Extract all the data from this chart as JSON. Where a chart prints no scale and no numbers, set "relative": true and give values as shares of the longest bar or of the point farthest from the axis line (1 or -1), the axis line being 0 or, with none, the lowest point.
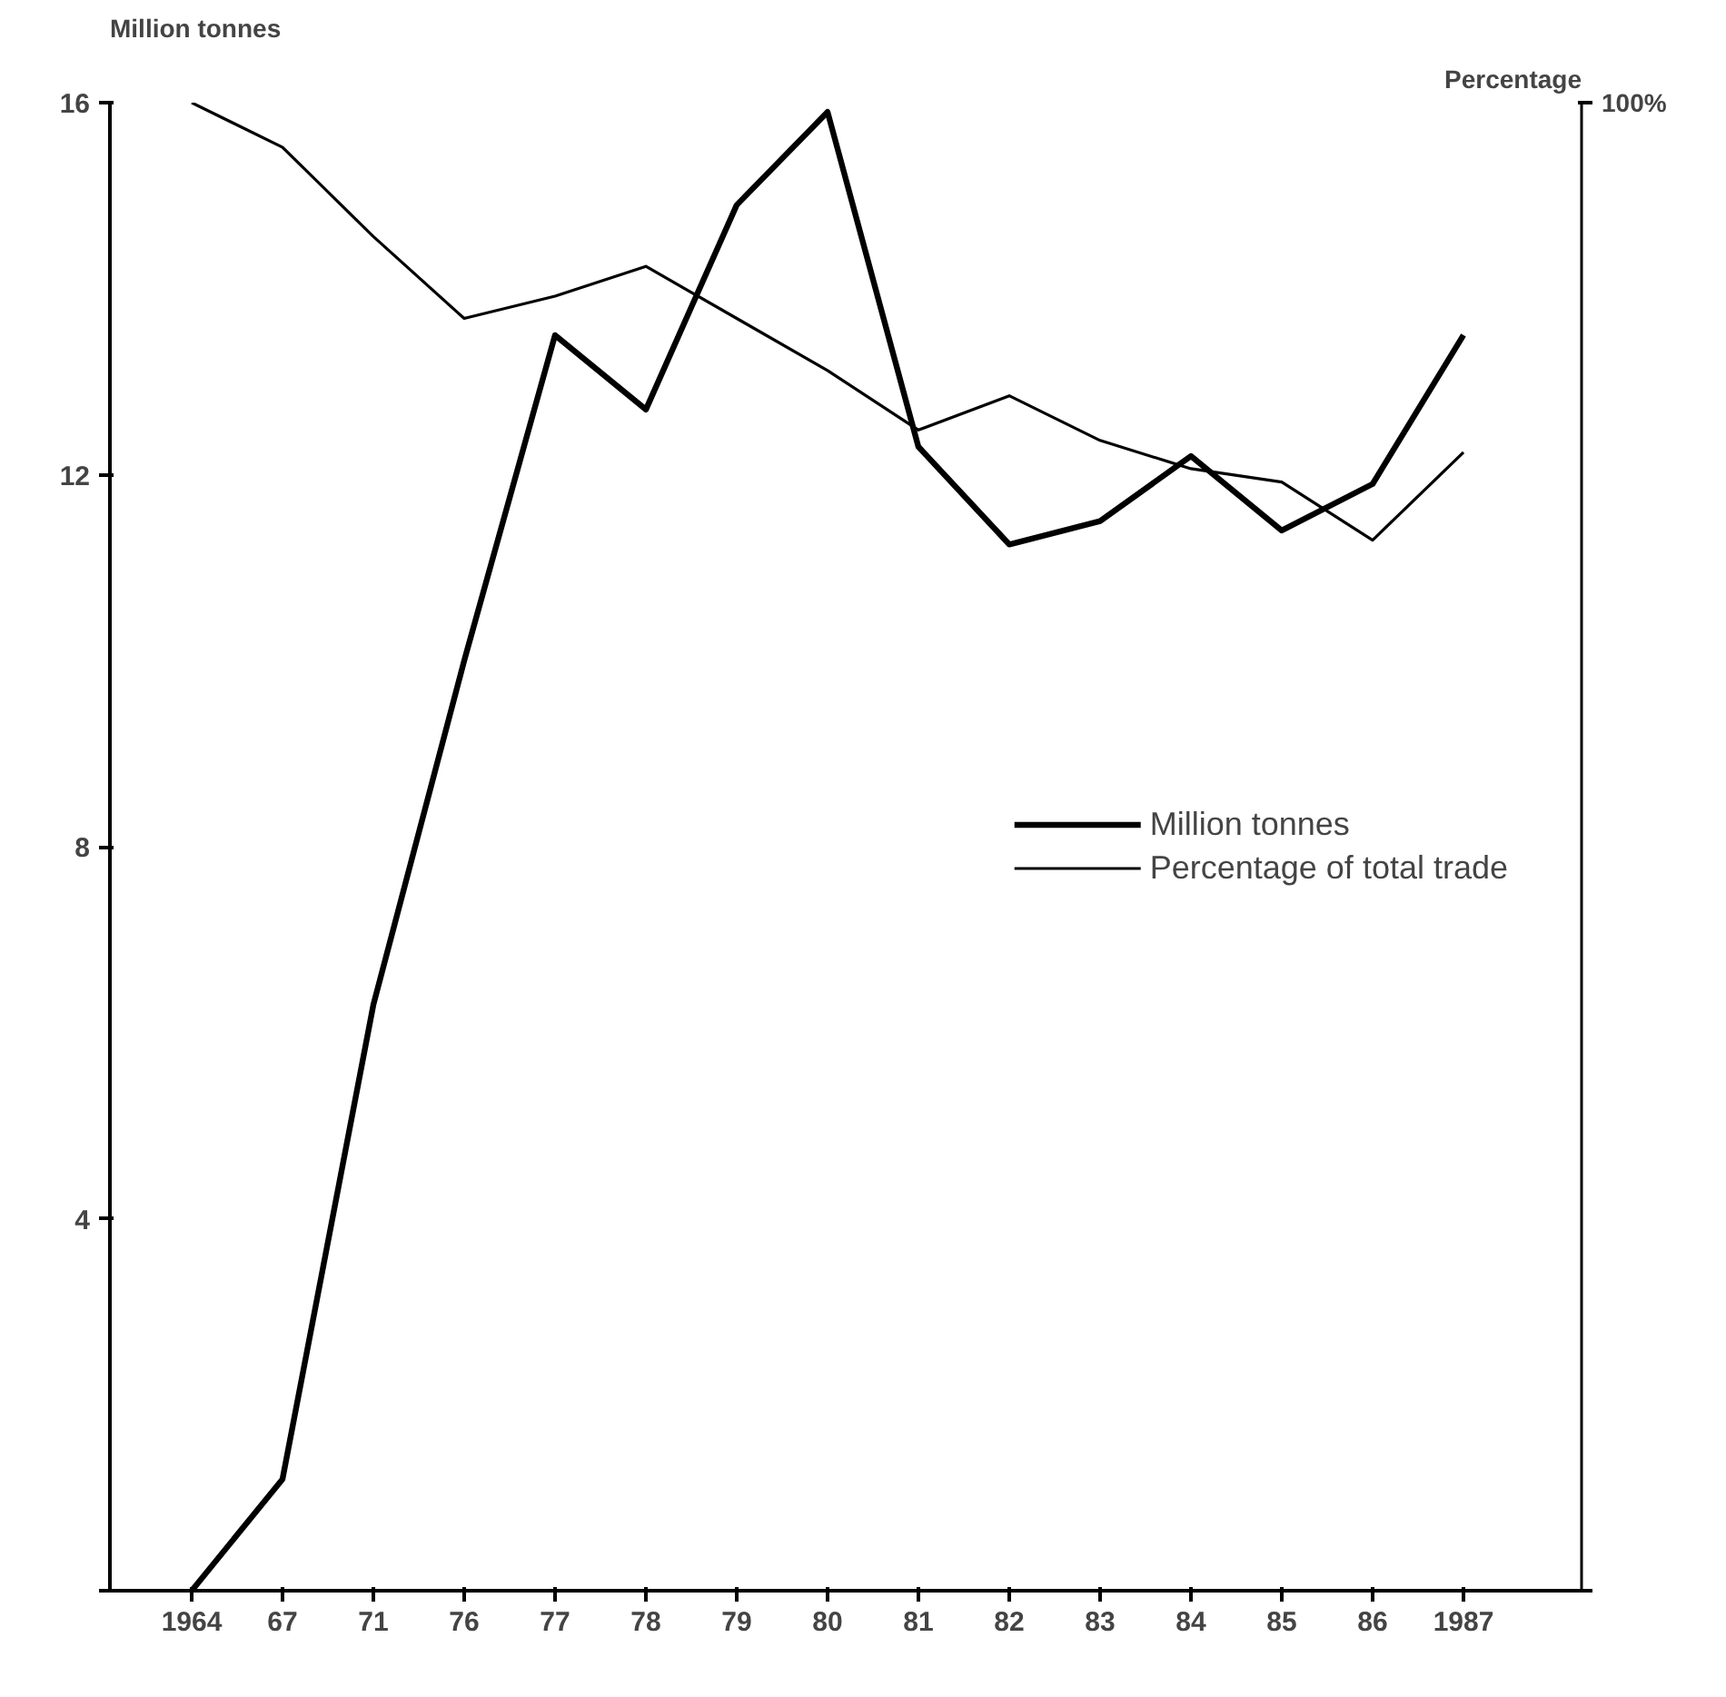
{
  "chart_data": [
    {
      "type": "line",
      "categories": [
        "1964",
        "67",
        "71",
        "76",
        "77",
        "78",
        "79",
        "80",
        "81",
        "82",
        "83",
        "84",
        "85",
        "86",
        "1987"
      ],
      "ylabel": "Million tonnes",
      "ylim": [
        0,
        16
      ],
      "yticks": [
        {
          "value": 0,
          "label": null
        },
        4,
        8,
        12,
        16
      ],
      "series": [
        {
          "name": "Million tonnes",
          "color": "#000000",
          "values": [
            0,
            1.2,
            6.3,
            10.0,
            13.5,
            12.7,
            14.9,
            15.9,
            12.3,
            11.25,
            11.5,
            12.2,
            11.4,
            11.9,
            13.5
          ]
        }
      ],
      "legend": "right",
      "grid": false
    },
    {
      "type": "line",
      "relative": true,
      "tick_labels": false,
      "categories": [
        "1964",
        "67",
        "71",
        "76",
        "77",
        "78",
        "79",
        "80",
        "81",
        "82",
        "83",
        "84",
        "85",
        "86",
        "1987"
      ],
      "y2label": "Percentage",
      "annotations": [
        "100%"
      ],
      "series": [
        {
          "name": "Percentage of total trade",
          "color": "#000000",
          "values": [
            1.0,
            0.97,
            0.91,
            0.855,
            0.87,
            0.89,
            0.855,
            0.82,
            0.78,
            0.803,
            0.773,
            0.754,
            0.745,
            0.706,
            0.765
          ]
        }
      ],
      "legend": "right",
      "grid": false
    }
  ]
}
